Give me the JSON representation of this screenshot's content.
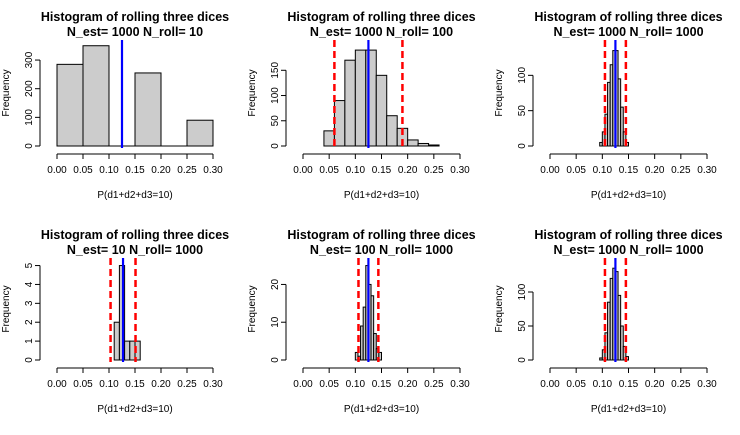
{
  "figure": {
    "background": "#ffffff"
  },
  "style": {
    "bar_fill": "#cccccc",
    "bar_stroke": "#000000",
    "mean_line": "#0000ff",
    "ci_line": "#ff0000"
  },
  "chart_data": [
    {
      "type": "bar",
      "title": "Histogram of rolling three dices",
      "subtitle": "N_est= 1000 N_roll= 10",
      "xlabel": "P(d1+d2+d3=10)",
      "ylabel": "Frequency",
      "xlim": [
        0,
        0.3
      ],
      "ylim": [
        0,
        370
      ],
      "xticks": [
        "0.00",
        "0.05",
        "0.10",
        "0.15",
        "0.20",
        "0.25",
        "0.30"
      ],
      "yticks": [
        0,
        100,
        200,
        300
      ],
      "bins": [
        {
          "x0": 0.0,
          "x1": 0.05,
          "count": 285
        },
        {
          "x0": 0.05,
          "x1": 0.1,
          "count": 350
        },
        {
          "x0": 0.1,
          "x1": 0.15,
          "count": 0
        },
        {
          "x0": 0.15,
          "x1": 0.2,
          "count": 255
        },
        {
          "x0": 0.2,
          "x1": 0.25,
          "count": 0
        },
        {
          "x0": 0.25,
          "x1": 0.3,
          "count": 90
        }
      ],
      "mean": 0.125,
      "ci": []
    },
    {
      "type": "bar",
      "title": "Histogram of rolling three dices",
      "subtitle": "N_est= 1000 N_roll= 100",
      "xlabel": "P(d1+d2+d3=10)",
      "ylabel": "Frequency",
      "xlim": [
        0,
        0.3
      ],
      "ylim": [
        0,
        210
      ],
      "xticks": [
        "0.00",
        "0.05",
        "0.10",
        "0.15",
        "0.20",
        "0.25",
        "0.30"
      ],
      "yticks": [
        0,
        50,
        100,
        150
      ],
      "bins": [
        {
          "x0": 0.04,
          "x1": 0.06,
          "count": 30
        },
        {
          "x0": 0.06,
          "x1": 0.08,
          "count": 90
        },
        {
          "x0": 0.08,
          "x1": 0.1,
          "count": 170
        },
        {
          "x0": 0.1,
          "x1": 0.12,
          "count": 190
        },
        {
          "x0": 0.12,
          "x1": 0.14,
          "count": 190
        },
        {
          "x0": 0.14,
          "x1": 0.16,
          "count": 140
        },
        {
          "x0": 0.16,
          "x1": 0.18,
          "count": 60
        },
        {
          "x0": 0.18,
          "x1": 0.2,
          "count": 35
        },
        {
          "x0": 0.2,
          "x1": 0.22,
          "count": 12
        },
        {
          "x0": 0.22,
          "x1": 0.24,
          "count": 5
        },
        {
          "x0": 0.24,
          "x1": 0.26,
          "count": 2
        }
      ],
      "mean": 0.125,
      "ci": [
        0.06,
        0.19
      ]
    },
    {
      "type": "bar",
      "title": "Histogram of rolling three dices",
      "subtitle": "N_est= 1000 N_roll= 1000",
      "xlabel": "P(d1+d2+d3=10)",
      "ylabel": "Frequency",
      "xlim": [
        0,
        0.3
      ],
      "ylim": [
        0,
        150
      ],
      "xticks": [
        "0.00",
        "0.05",
        "0.10",
        "0.15",
        "0.20",
        "0.25",
        "0.30"
      ],
      "yticks": [
        0,
        50,
        100
      ],
      "bins": [
        {
          "x0": 0.095,
          "x1": 0.1,
          "count": 5
        },
        {
          "x0": 0.1,
          "x1": 0.105,
          "count": 20
        },
        {
          "x0": 0.105,
          "x1": 0.11,
          "count": 45
        },
        {
          "x0": 0.11,
          "x1": 0.115,
          "count": 90
        },
        {
          "x0": 0.115,
          "x1": 0.12,
          "count": 115
        },
        {
          "x0": 0.12,
          "x1": 0.125,
          "count": 135
        },
        {
          "x0": 0.125,
          "x1": 0.13,
          "count": 135
        },
        {
          "x0": 0.13,
          "x1": 0.135,
          "count": 95
        },
        {
          "x0": 0.135,
          "x1": 0.14,
          "count": 55
        },
        {
          "x0": 0.14,
          "x1": 0.145,
          "count": 20
        },
        {
          "x0": 0.145,
          "x1": 0.15,
          "count": 5
        }
      ],
      "mean": 0.125,
      "ci": [
        0.105,
        0.145
      ]
    },
    {
      "type": "bar",
      "title": "Histogram of rolling three dices",
      "subtitle": "N_est= 10 N_roll= 1000",
      "xlabel": "P(d1+d2+d3=10)",
      "ylabel": "Frequency",
      "xlim": [
        0,
        0.3
      ],
      "ylim": [
        0,
        5.4
      ],
      "xticks": [
        "0.00",
        "0.05",
        "0.10",
        "0.15",
        "0.20",
        "0.25",
        "0.30"
      ],
      "yticks": [
        0,
        1,
        2,
        3,
        4,
        5
      ],
      "bins": [
        {
          "x0": 0.11,
          "x1": 0.12,
          "count": 2
        },
        {
          "x0": 0.12,
          "x1": 0.13,
          "count": 5
        },
        {
          "x0": 0.13,
          "x1": 0.14,
          "count": 1
        },
        {
          "x0": 0.14,
          "x1": 0.15,
          "count": 1
        },
        {
          "x0": 0.15,
          "x1": 0.16,
          "count": 1
        }
      ],
      "mean": 0.127,
      "ci": [
        0.103,
        0.151
      ]
    },
    {
      "type": "bar",
      "title": "Histogram of rolling three dices",
      "subtitle": "N_est= 100 N_roll= 1000",
      "xlabel": "P(d1+d2+d3=10)",
      "ylabel": "Frequency",
      "xlim": [
        0,
        0.3
      ],
      "ylim": [
        0,
        27
      ],
      "xticks": [
        "0.00",
        "0.05",
        "0.10",
        "0.15",
        "0.20",
        "0.25",
        "0.30"
      ],
      "yticks": [
        0,
        10,
        20
      ],
      "bins": [
        {
          "x0": 0.1,
          "x1": 0.105,
          "count": 2
        },
        {
          "x0": 0.105,
          "x1": 0.11,
          "count": 1
        },
        {
          "x0": 0.11,
          "x1": 0.115,
          "count": 9
        },
        {
          "x0": 0.115,
          "x1": 0.12,
          "count": 14
        },
        {
          "x0": 0.12,
          "x1": 0.125,
          "count": 25
        },
        {
          "x0": 0.125,
          "x1": 0.13,
          "count": 20
        },
        {
          "x0": 0.13,
          "x1": 0.135,
          "count": 17
        },
        {
          "x0": 0.135,
          "x1": 0.14,
          "count": 7
        },
        {
          "x0": 0.14,
          "x1": 0.145,
          "count": 3
        },
        {
          "x0": 0.145,
          "x1": 0.15,
          "count": 2
        }
      ],
      "mean": 0.125,
      "ci": [
        0.106,
        0.144
      ]
    },
    {
      "type": "bar",
      "title": "Histogram of rolling three dices",
      "subtitle": "N_est= 1000 N_roll= 1000",
      "xlabel": "P(d1+d2+d3=10)",
      "ylabel": "Frequency",
      "xlim": [
        0,
        0.3
      ],
      "ylim": [
        0,
        150
      ],
      "xticks": [
        "0.00",
        "0.05",
        "0.10",
        "0.15",
        "0.20",
        "0.25",
        "0.30"
      ],
      "yticks": [
        0,
        50,
        100
      ],
      "bins": [
        {
          "x0": 0.095,
          "x1": 0.1,
          "count": 3
        },
        {
          "x0": 0.1,
          "x1": 0.105,
          "count": 15
        },
        {
          "x0": 0.105,
          "x1": 0.11,
          "count": 40
        },
        {
          "x0": 0.11,
          "x1": 0.115,
          "count": 85
        },
        {
          "x0": 0.115,
          "x1": 0.12,
          "count": 120
        },
        {
          "x0": 0.12,
          "x1": 0.125,
          "count": 135
        },
        {
          "x0": 0.125,
          "x1": 0.13,
          "count": 130
        },
        {
          "x0": 0.13,
          "x1": 0.135,
          "count": 95
        },
        {
          "x0": 0.135,
          "x1": 0.14,
          "count": 50
        },
        {
          "x0": 0.14,
          "x1": 0.145,
          "count": 20
        },
        {
          "x0": 0.145,
          "x1": 0.15,
          "count": 5
        }
      ],
      "mean": 0.125,
      "ci": [
        0.105,
        0.145
      ]
    }
  ]
}
